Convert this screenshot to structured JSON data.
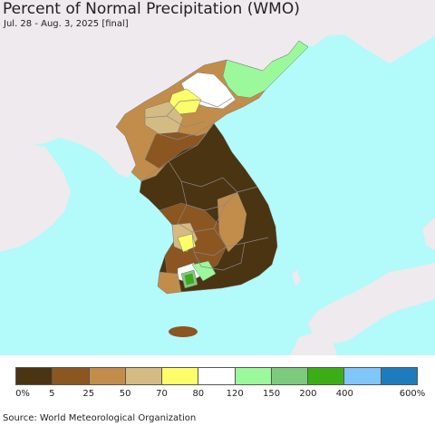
{
  "title": "Percent of Normal Precipitation (WMO)",
  "subtitle": "Jul. 28 - Aug. 3, 2025 [final]",
  "source": "Source: World Meteorological Organization",
  "legend": {
    "colors": [
      "#4a3412",
      "#8b5620",
      "#c28d4a",
      "#d4bb83",
      "#fdfd6a",
      "#ffffff",
      "#9bf89b",
      "#7ccb7c",
      "#3cae15",
      "#80c6f8",
      "#1f7cbc"
    ],
    "labels": [
      "0%",
      "5",
      "25",
      "50",
      "70",
      "80",
      "120",
      "150",
      "200",
      "400",
      "600%"
    ]
  },
  "map": {
    "ocean_color": "#b3fafa",
    "land_color": "#eeeaee",
    "border_color": "#888888"
  }
}
